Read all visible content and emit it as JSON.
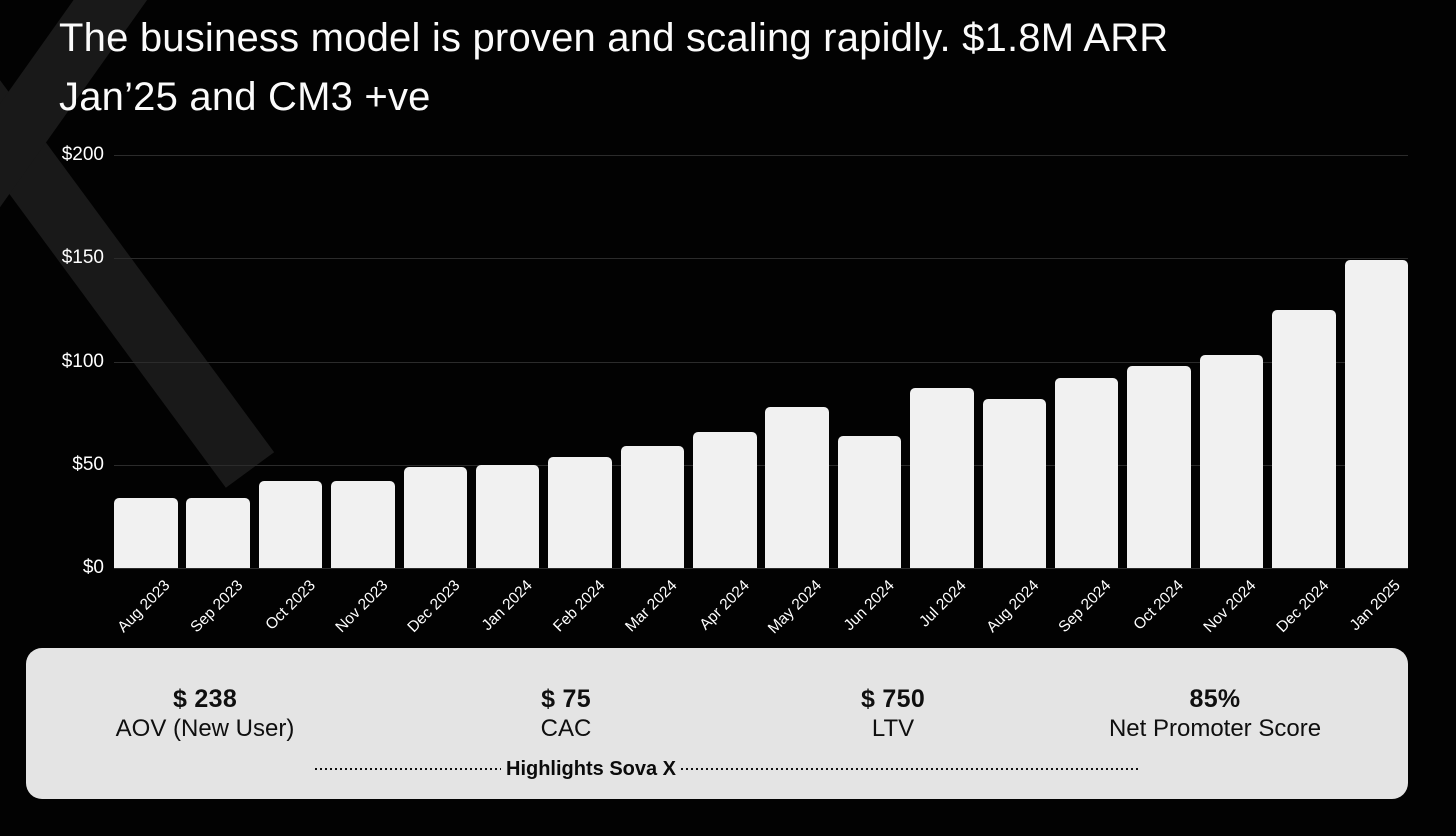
{
  "slide": {
    "title_lines": [
      "The business model is proven and scaling rapidly. $1.8M ARR",
      "Jan’25 and CM3 +ve"
    ]
  },
  "chart_data": {
    "type": "bar",
    "title": "",
    "xlabel": "",
    "ylabel": "",
    "categories": [
      "Aug 2023",
      "Sep 2023",
      "Oct 2023",
      "Nov 2023",
      "Dec 2023",
      "Jan 2024",
      "Feb 2024",
      "Mar 2024",
      "Apr 2024",
      "May 2024",
      "Jun 2024",
      "Jul 2024",
      "Aug 2024",
      "Sep 2024",
      "Oct 2024",
      "Nov 2024",
      "Dec 2024",
      "Jan 2025"
    ],
    "values": [
      34,
      34,
      42,
      42,
      49,
      50,
      54,
      59,
      66,
      78,
      64,
      87,
      82,
      92,
      98,
      103,
      125,
      149
    ],
    "ylim": [
      0,
      200
    ],
    "ytick_values": [
      0,
      50,
      100,
      150,
      200
    ],
    "yticks": [
      "$0",
      "$50",
      "$100",
      "$150",
      "$200"
    ],
    "grid": true,
    "legend": "none",
    "bar_color": "#f1f1f1",
    "background": "#000000"
  },
  "stats": {
    "items": [
      {
        "value": "$ 238",
        "label": "AOV (New User)"
      },
      {
        "value": "$ 75",
        "label": "CAC"
      },
      {
        "value": "$ 750",
        "label": "LTV"
      },
      {
        "value": "85%",
        "label": "Net Promoter Score"
      }
    ],
    "divider_label": "Highlights Sova X"
  },
  "colors": {
    "panel_background": "#e4e4e4",
    "gridline": "#2b2b2b",
    "text_light": "#ffffff",
    "text_dark": "#0f0f0f"
  }
}
